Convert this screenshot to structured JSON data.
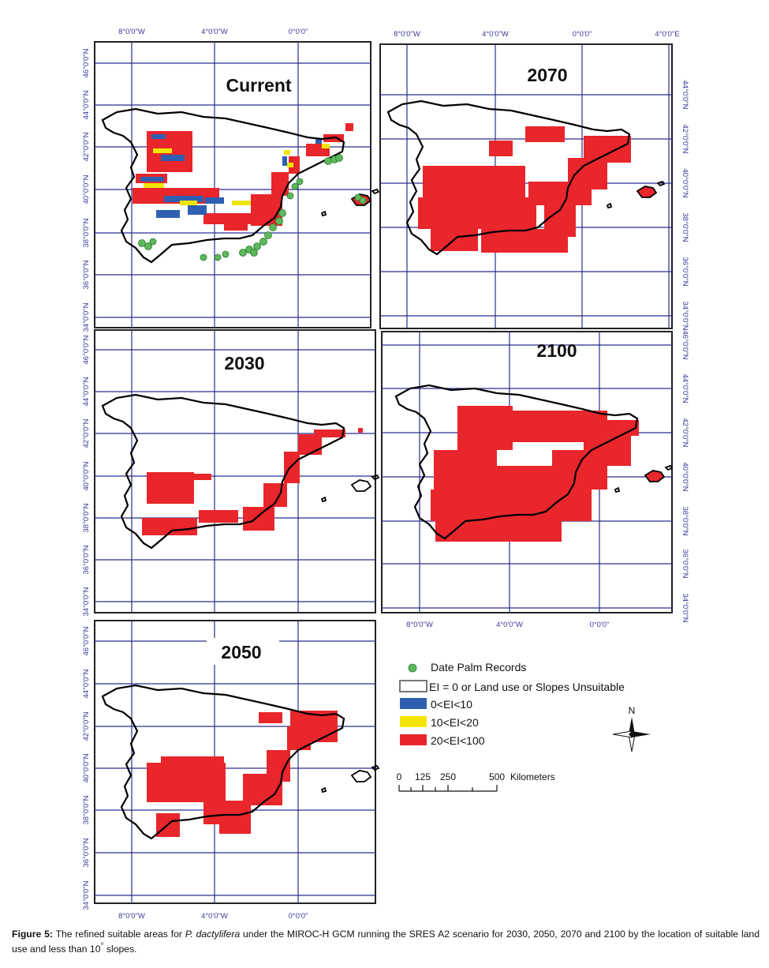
{
  "panels": [
    {
      "title": "Current",
      "xlabels": [
        "8°0'0\"W",
        "4°0'0\"W",
        "0°0'0\""
      ],
      "ylabels": [
        "46°0'0\"N",
        "44°0'0\"N",
        "42°0'0\"N",
        "40°0'0\"N",
        "38°0'0\"N",
        "36°0'0\"N",
        "34°0'0\"N"
      ]
    },
    {
      "title": "2070",
      "xlabels": [
        "8°0'0\"W",
        "4°0'0\"W",
        "0°0'0\"",
        "4°0'0\"E"
      ],
      "ylabels": [
        "44°0'0\"N",
        "42°0'0\"N",
        "40°0'0\"N",
        "38°0'0\"N",
        "36°0'0\"N",
        "34°0'0\"N"
      ]
    },
    {
      "title": "2030",
      "ylabels": [
        "46°0'0\"N",
        "44°0'0\"N",
        "42°0'0\"N",
        "40°0'0\"N",
        "38°0'0\"N",
        "36°0'0\"N",
        "34°0'0\"N"
      ]
    },
    {
      "title": "2100",
      "xlabels": [
        "8°0'0\"W",
        "4°0'0\"W",
        "0°0'0\""
      ],
      "ylabels": [
        "46°0'0\"N",
        "44°0'0\"N",
        "42°0'0\"N",
        "40°0'0\"N",
        "38°0'0\"N",
        "36°0'0\"N",
        "34°0'0\"N"
      ]
    },
    {
      "title": "2050",
      "xlabels": [
        "8°0'0\"W",
        "4°0'0\"W",
        "0°0'0\""
      ],
      "ylabels": [
        "46°0'0\"N",
        "44°0'0\"N",
        "42°0'0\"N",
        "40°0'0\"N",
        "38°0'0\"N",
        "36°0'0\"N",
        "34°0'0\"N"
      ]
    }
  ],
  "legend": {
    "items": [
      {
        "label": "Date Palm Records",
        "color": "#5cb85c"
      },
      {
        "label": "EI = 0 or Land use or Slopes Unsuitable",
        "color": "#ffffff"
      },
      {
        "label": "0<EI<10",
        "color": "#2f5fb0"
      },
      {
        "label": "10<EI<20",
        "color": "#f2e600"
      },
      {
        "label": "20<EI<100",
        "color": "#e8262c"
      }
    ]
  },
  "scale_bar": {
    "labels": [
      "0",
      "125",
      "250",
      "500"
    ],
    "units": "Kilometers"
  },
  "north_arrow": {
    "label": "N"
  },
  "caption": {
    "label": "Figure 5:",
    "text_1": " The refined suitable areas for ",
    "species": "P. dactylifera",
    "text_2": " under the MIROC-H GCM running the SRES A2 scenario for 2030, 2050, 2070 and 2100 by the location of suitable land use and less than 10",
    "superscript": "°",
    "text_3": " slopes."
  },
  "colors": {
    "grid": "#2b2f8f",
    "frame": "#222222",
    "outline": "#000000"
  }
}
